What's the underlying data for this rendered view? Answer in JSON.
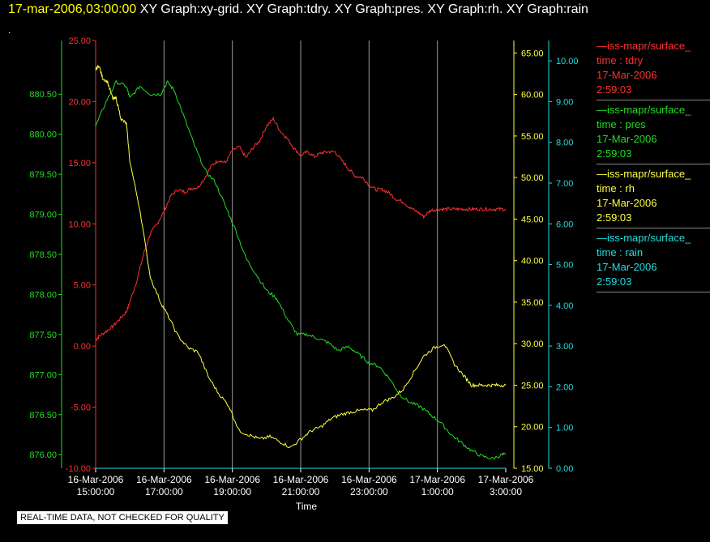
{
  "header": {
    "date": "17-mar-2006,03:00:00",
    "graphs": "XY Graph:xy-grid.  XY Graph:tdry.  XY Graph:pres.  XY Graph:rh.  XY Graph:rain",
    "dot": "."
  },
  "footer_badge": "REAL-TIME DATA, NOT CHECKED FOR QUALITY",
  "legend": [
    {
      "line": "—iss-mapr/surface_",
      "var": "time : tdry",
      "date": "17-Mar-2006",
      "time": "2:59:03",
      "color": "#ff3030"
    },
    {
      "line": "—iss-mapr/surface_",
      "var": "time : pres",
      "date": "17-Mar-2006",
      "time": "2:59:03",
      "color": "#22dd22"
    },
    {
      "line": "—iss-mapr/surface_",
      "var": "time : rh",
      "date": "17-Mar-2006",
      "time": "2:59:03",
      "color": "#ffff44"
    },
    {
      "line": "—iss-mapr/surface_",
      "var": "time : rain",
      "date": "17-Mar-2006",
      "time": "2:59:03",
      "color": "#22dddd"
    }
  ],
  "chart_data": {
    "type": "line",
    "xlabel": "Time",
    "x_ticks": [
      {
        "date": "16-Mar-2006",
        "time": "15:00:00"
      },
      {
        "date": "16-Mar-2006",
        "time": "17:00:00"
      },
      {
        "date": "16-Mar-2006",
        "time": "19:00:00"
      },
      {
        "date": "16-Mar-2006",
        "time": "21:00:00"
      },
      {
        "date": "16-Mar-2006",
        "time": "23:00:00"
      },
      {
        "date": "17-Mar-2006",
        "time": "1:00:00"
      },
      {
        "date": "17-Mar-2006",
        "time": "3:00:00"
      }
    ],
    "xlim": [
      "16-Mar-2006 15:00:00",
      "17-Mar-2006 3:00:00"
    ],
    "axes": {
      "tdry": {
        "range": [
          -10,
          25
        ],
        "ticks": [
          "-10.00",
          "-5.00",
          "0.00",
          "5.00",
          "10.00",
          "15.00",
          "20.00",
          "25.00"
        ],
        "color": "#ff3030"
      },
      "pres": {
        "range": [
          875.83,
          881.17
        ],
        "ticks": [
          "876.00",
          "876.50",
          "877.00",
          "877.50",
          "878.00",
          "878.50",
          "879.00",
          "879.50",
          "880.00",
          "880.50"
        ],
        "color": "#22dd22"
      },
      "rh": {
        "range": [
          15,
          66.5
        ],
        "ticks": [
          "15.00",
          "20.00",
          "25.00",
          "30.00",
          "35.00",
          "40.00",
          "45.00",
          "50.00",
          "55.00",
          "60.00",
          "65.00"
        ],
        "color": "#ffff44"
      },
      "rain": {
        "range": [
          0,
          10.5
        ],
        "ticks": [
          "0.00",
          "1.00",
          "2.00",
          "3.00",
          "4.00",
          "5.00",
          "6.00",
          "7.00",
          "8.00",
          "9.00",
          "10.00"
        ],
        "color": "#22dddd"
      }
    },
    "series": [
      {
        "name": "tdry",
        "axis": "tdry",
        "color": "#ff3030",
        "x": [
          0,
          0.1,
          0.3,
          0.5,
          0.7,
          0.9,
          1.0,
          1.2,
          1.4,
          1.6,
          1.8,
          2.0,
          2.2,
          2.4,
          2.6,
          2.8,
          3.0,
          3.2,
          3.4,
          3.6,
          3.8,
          4.0,
          4.2,
          4.4,
          4.6,
          4.8,
          5.0,
          5.2,
          5.4,
          5.6,
          5.8,
          6.0,
          6.2,
          6.4,
          6.6,
          6.8,
          7.0,
          7.2,
          7.4,
          7.6,
          7.8,
          8.0,
          8.2,
          8.4,
          8.6,
          8.8,
          9.0,
          9.2,
          9.4,
          9.6,
          9.8,
          10.0,
          10.2,
          10.4,
          10.6,
          10.8,
          11.0,
          11.2,
          11.4,
          11.6,
          11.8,
          12.0
        ],
        "y": [
          0.5,
          0.8,
          1.2,
          1.6,
          2.2,
          2.8,
          3.6,
          5.3,
          7.5,
          9.2,
          10.0,
          11.0,
          12.3,
          12.8,
          12.6,
          12.9,
          13.0,
          13.8,
          14.8,
          15.2,
          15.0,
          16.0,
          16.3,
          15.4,
          16.2,
          16.8,
          18.0,
          18.6,
          17.6,
          17.0,
          16.2,
          15.6,
          15.9,
          15.5,
          15.8,
          15.9,
          15.9,
          15.2,
          14.5,
          13.9,
          13.8,
          13.2,
          12.8,
          12.8,
          12.5,
          12.0,
          11.8,
          11.3,
          11.0,
          10.6,
          11.1,
          11.2,
          11.2,
          11.2,
          11.2,
          11.2,
          11.2,
          11.2,
          11.2,
          11.2,
          11.2,
          11.2
        ]
      },
      {
        "name": "pres",
        "axis": "pres",
        "color": "#22dd22",
        "x": [
          0,
          0.3,
          0.6,
          0.9,
          1.0,
          1.3,
          1.6,
          1.9,
          2.1,
          2.3,
          2.6,
          2.9,
          3.2,
          3.5,
          3.8,
          4.1,
          4.4,
          4.7,
          5.0,
          5.3,
          5.6,
          5.9,
          6.2,
          6.5,
          6.8,
          7.1,
          7.4,
          7.7,
          8.0,
          8.3,
          8.6,
          8.9,
          9.2,
          9.5,
          9.8,
          10.1,
          10.4,
          10.7,
          11.0,
          11.3,
          11.6,
          11.9,
          12.0
        ],
        "y": [
          880.1,
          880.4,
          880.65,
          880.6,
          880.45,
          880.6,
          880.5,
          880.5,
          880.65,
          880.55,
          880.2,
          879.85,
          879.55,
          879.4,
          879.1,
          878.8,
          878.45,
          878.25,
          878.05,
          877.95,
          877.7,
          877.5,
          877.5,
          877.45,
          877.4,
          877.3,
          877.35,
          877.25,
          877.15,
          877.1,
          876.95,
          876.75,
          876.65,
          876.6,
          876.5,
          876.4,
          876.25,
          876.15,
          876.05,
          875.98,
          875.95,
          876.0,
          876.0
        ]
      },
      {
        "name": "rh",
        "axis": "rh",
        "color": "#ffff44",
        "x": [
          0,
          0.1,
          0.2,
          0.35,
          0.5,
          0.6,
          0.75,
          0.9,
          1.0,
          1.3,
          1.6,
          1.9,
          2.1,
          2.4,
          2.7,
          3.0,
          3.3,
          3.6,
          3.9,
          4.2,
          4.5,
          4.8,
          5.1,
          5.4,
          5.7,
          6.0,
          6.3,
          6.6,
          6.9,
          7.2,
          7.5,
          7.8,
          8.1,
          8.4,
          8.7,
          9.0,
          9.3,
          9.6,
          9.9,
          10.2,
          10.5,
          10.8,
          11.0,
          11.2,
          11.4,
          11.6,
          11.8,
          12.0
        ],
        "y": [
          63.0,
          63.5,
          62.0,
          61.5,
          59.5,
          59.5,
          57.0,
          56.5,
          52.0,
          46.0,
          38.0,
          35.0,
          33.5,
          31.0,
          29.5,
          29.0,
          26.0,
          24.0,
          22.5,
          19.5,
          19.0,
          18.5,
          18.8,
          18.2,
          17.5,
          18.5,
          19.5,
          20.0,
          21.0,
          21.5,
          21.8,
          22.0,
          22.0,
          23.0,
          23.5,
          24.5,
          26.5,
          28.5,
          29.5,
          30.0,
          27.5,
          26.0,
          25.0,
          25.0,
          25.0,
          25.0,
          25.0,
          25.0
        ]
      },
      {
        "name": "rain",
        "axis": "rain",
        "color": "#22dddd",
        "x": [
          0,
          12
        ],
        "y": [
          0,
          0
        ]
      }
    ]
  }
}
